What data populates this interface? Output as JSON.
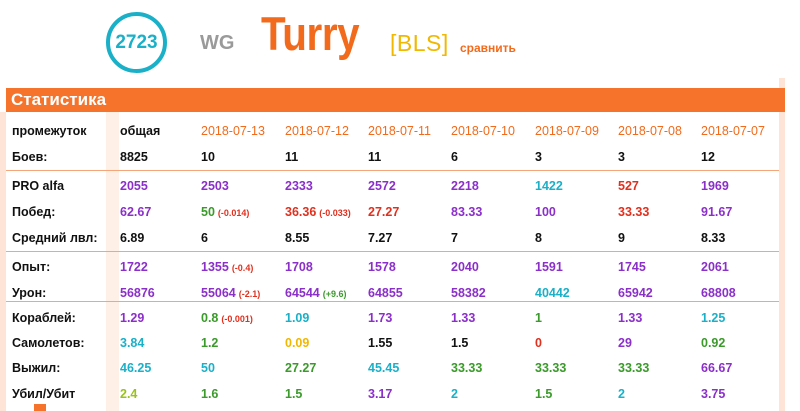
{
  "player": {
    "rating": "2723",
    "server": "WG",
    "nickname": "Turry",
    "clan": "[BLS]",
    "compare_label": "сравнить"
  },
  "section_title": "Статистика",
  "colors": {
    "orange": "#f26a1b",
    "purple": "#8b2fc9",
    "teal": "#1ab0c8",
    "green": "#3a9a2a",
    "red": "#e0301e",
    "lime": "#9ac21a",
    "yellow": "#f0b800",
    "dark": "#111111"
  },
  "columns": [
    "общая",
    "2018-07-13",
    "2018-07-12",
    "2018-07-11",
    "2018-07-10",
    "2018-07-09",
    "2018-07-08",
    "2018-07-07"
  ],
  "rows": [
    {
      "key": "period",
      "label": "промежуток",
      "cells": [
        {
          "v": "общая",
          "c": "dark"
        },
        {
          "v": "2018-07-13",
          "c": "orange",
          "n": true
        },
        {
          "v": "2018-07-12",
          "c": "orange",
          "n": true
        },
        {
          "v": "2018-07-11",
          "c": "orange",
          "n": true
        },
        {
          "v": "2018-07-10",
          "c": "orange",
          "n": true
        },
        {
          "v": "2018-07-09",
          "c": "orange",
          "n": true
        },
        {
          "v": "2018-07-08",
          "c": "orange",
          "n": true
        },
        {
          "v": "2018-07-07",
          "c": "orange",
          "n": true
        }
      ]
    },
    {
      "key": "battles",
      "label": "Боев:",
      "cells": [
        {
          "v": "8825",
          "c": "dark"
        },
        {
          "v": "10",
          "c": "dark"
        },
        {
          "v": "11",
          "c": "dark"
        },
        {
          "v": "11",
          "c": "dark"
        },
        {
          "v": "6",
          "c": "dark"
        },
        {
          "v": "3",
          "c": "dark"
        },
        {
          "v": "3",
          "c": "dark"
        },
        {
          "v": "12",
          "c": "dark"
        }
      ]
    },
    {
      "key": "pro_alfa",
      "label": "PRO alfa",
      "cells": [
        {
          "v": "2055",
          "c": "purple"
        },
        {
          "v": "2503",
          "c": "purple"
        },
        {
          "v": "2333",
          "c": "purple"
        },
        {
          "v": "2572",
          "c": "purple"
        },
        {
          "v": "2218",
          "c": "purple"
        },
        {
          "v": "1422",
          "c": "teal"
        },
        {
          "v": "527",
          "c": "red"
        },
        {
          "v": "1969",
          "c": "purple"
        }
      ]
    },
    {
      "key": "wins",
      "label": "Побед:",
      "cells": [
        {
          "v": "62.67",
          "c": "purple"
        },
        {
          "v": "50",
          "c": "green",
          "d": "(-0.014)",
          "dc": "red"
        },
        {
          "v": "36.36",
          "c": "red",
          "d": "(-0.033)",
          "dc": "red"
        },
        {
          "v": "27.27",
          "c": "red"
        },
        {
          "v": "83.33",
          "c": "purple"
        },
        {
          "v": "100",
          "c": "purple"
        },
        {
          "v": "33.33",
          "c": "red"
        },
        {
          "v": "91.67",
          "c": "purple"
        }
      ]
    },
    {
      "key": "avg_level",
      "label": "Средний лвл:",
      "cells": [
        {
          "v": "6.89",
          "c": "dark"
        },
        {
          "v": "6",
          "c": "dark"
        },
        {
          "v": "8.55",
          "c": "dark"
        },
        {
          "v": "7.27",
          "c": "dark"
        },
        {
          "v": "7",
          "c": "dark"
        },
        {
          "v": "8",
          "c": "dark"
        },
        {
          "v": "9",
          "c": "dark"
        },
        {
          "v": "8.33",
          "c": "dark"
        }
      ]
    },
    {
      "key": "xp",
      "label": "Опыт:",
      "cells": [
        {
          "v": "1722",
          "c": "purple"
        },
        {
          "v": "1355",
          "c": "purple",
          "d": "(-0.4)",
          "dc": "red"
        },
        {
          "v": "1708",
          "c": "purple"
        },
        {
          "v": "1578",
          "c": "purple"
        },
        {
          "v": "2040",
          "c": "purple"
        },
        {
          "v": "1591",
          "c": "purple"
        },
        {
          "v": "1745",
          "c": "purple"
        },
        {
          "v": "2061",
          "c": "purple"
        }
      ]
    },
    {
      "key": "damage",
      "label": "Урон:",
      "cells": [
        {
          "v": "56876",
          "c": "purple"
        },
        {
          "v": "55064",
          "c": "purple",
          "d": "(-2.1)",
          "dc": "red"
        },
        {
          "v": "64544",
          "c": "purple",
          "d": "(+9.6)",
          "dc": "green"
        },
        {
          "v": "64855",
          "c": "purple"
        },
        {
          "v": "58382",
          "c": "purple"
        },
        {
          "v": "40442",
          "c": "teal"
        },
        {
          "v": "65942",
          "c": "purple"
        },
        {
          "v": "68808",
          "c": "purple"
        }
      ]
    },
    {
      "key": "ships",
      "label": "Кораблей:",
      "cells": [
        {
          "v": "1.29",
          "c": "purple"
        },
        {
          "v": "0.8",
          "c": "green",
          "d": "(-0.001)",
          "dc": "red"
        },
        {
          "v": "1.09",
          "c": "teal"
        },
        {
          "v": "1.73",
          "c": "purple"
        },
        {
          "v": "1.33",
          "c": "purple"
        },
        {
          "v": "1",
          "c": "green"
        },
        {
          "v": "1.33",
          "c": "purple"
        },
        {
          "v": "1.25",
          "c": "teal"
        }
      ]
    },
    {
      "key": "planes",
      "label": "Самолетов:",
      "cells": [
        {
          "v": "3.84",
          "c": "teal"
        },
        {
          "v": "1.2",
          "c": "green"
        },
        {
          "v": "0.09",
          "c": "yellow"
        },
        {
          "v": "1.55",
          "c": "dark"
        },
        {
          "v": "1.5",
          "c": "dark"
        },
        {
          "v": "0",
          "c": "red"
        },
        {
          "v": "29",
          "c": "purple"
        },
        {
          "v": "0.92",
          "c": "green"
        }
      ]
    },
    {
      "key": "survived",
      "label": "Выжил:",
      "cells": [
        {
          "v": "46.25",
          "c": "teal"
        },
        {
          "v": "50",
          "c": "teal"
        },
        {
          "v": "27.27",
          "c": "green"
        },
        {
          "v": "45.45",
          "c": "teal"
        },
        {
          "v": "33.33",
          "c": "green"
        },
        {
          "v": "33.33",
          "c": "green"
        },
        {
          "v": "33.33",
          "c": "green"
        },
        {
          "v": "66.67",
          "c": "purple"
        }
      ]
    },
    {
      "key": "kd",
      "label": "Убил/Убит",
      "cells": [
        {
          "v": "2.4",
          "c": "lime"
        },
        {
          "v": "1.6",
          "c": "green"
        },
        {
          "v": "1.5",
          "c": "green"
        },
        {
          "v": "3.17",
          "c": "purple"
        },
        {
          "v": "2",
          "c": "teal"
        },
        {
          "v": "1.5",
          "c": "green"
        },
        {
          "v": "2",
          "c": "teal"
        },
        {
          "v": "3.75",
          "c": "purple"
        }
      ]
    }
  ]
}
